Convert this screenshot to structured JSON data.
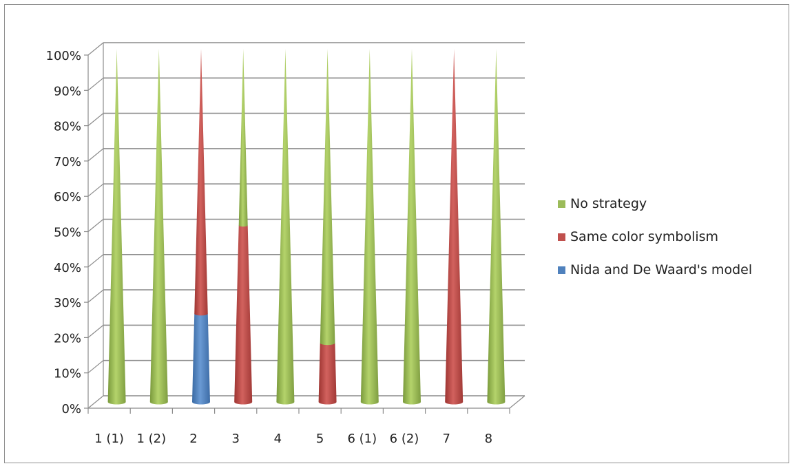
{
  "chart_data": {
    "type": "bar",
    "stacked": true,
    "percent_stacked": true,
    "shape": "cone",
    "categories": [
      "1 (1)",
      "1 (2)",
      "2",
      "3",
      "4",
      "5",
      "6 (1)",
      "6 (2)",
      "7",
      "8"
    ],
    "series": [
      {
        "name": "Nida and De Waard's model",
        "color": "#4f81bd",
        "values": [
          0,
          0,
          25,
          0,
          0,
          0,
          0,
          0,
          0,
          0
        ]
      },
      {
        "name": "Same color symbolism",
        "color": "#c0504d",
        "values": [
          0,
          0,
          75,
          50,
          0,
          16.7,
          0,
          0,
          100,
          0
        ]
      },
      {
        "name": "No strategy",
        "color": "#9bbb59",
        "values": [
          100,
          100,
          0,
          50,
          100,
          83.3,
          100,
          100,
          0,
          100
        ]
      }
    ],
    "y_tick_labels": [
      "0%",
      "10%",
      "20%",
      "30%",
      "40%",
      "50%",
      "60%",
      "70%",
      "80%",
      "90%",
      "100%"
    ],
    "ylim": [
      0,
      100
    ],
    "grid": true,
    "legend_position": "right",
    "legend_order": [
      "No strategy",
      "Same color symbolism",
      "Nida and De Waard's model"
    ]
  }
}
